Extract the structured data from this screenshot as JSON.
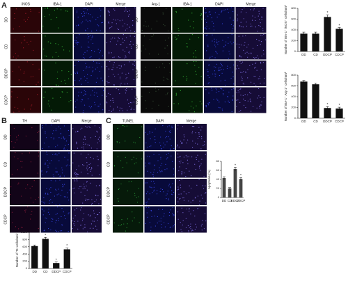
{
  "figure": {
    "panel_labels": [
      "A",
      "B",
      "C"
    ],
    "groups": [
      {
        "columns": [
          "iNOS",
          "IBA-1",
          "DAPI",
          "Merge"
        ],
        "rows": [
          "DD",
          "CD",
          "DDCP",
          "CDCP"
        ]
      },
      {
        "columns": [
          "Arg-1",
          "IBA-1",
          "DAPI",
          "Merge"
        ],
        "rows": [
          "DD",
          "CD",
          "DDCP",
          "CDCP"
        ]
      },
      {
        "columns": [
          "TH",
          "DAPI",
          "Merge"
        ],
        "rows": [
          "DD",
          "CD",
          "DDCP",
          "CDCP"
        ]
      },
      {
        "columns": [
          "TUNEL",
          "DAPI",
          "Merge"
        ],
        "rows": [
          "DD",
          "CD",
          "DDCP",
          "CDCP"
        ]
      }
    ]
  },
  "chart_data": [
    {
      "type": "bar",
      "y_label": "Number of IBA-1⁺ iNOS⁺ cells/mm²",
      "categories": [
        "DD",
        "CD",
        "DDCP",
        "CDCP"
      ],
      "values": [
        330,
        330,
        640,
        420
      ],
      "errors": [
        30,
        30,
        40,
        25
      ],
      "significance": [
        null,
        null,
        "*",
        "*"
      ],
      "color": "#111111",
      "ylim": [
        0,
        800
      ],
      "yticks": [
        0,
        200,
        400,
        600,
        800
      ]
    },
    {
      "type": "bar",
      "y_label": "Number of IBA-1⁺ Arg-1⁺ cells/mm²",
      "categories": [
        "DD",
        "CD",
        "DDCP",
        "CDCP"
      ],
      "values": [
        680,
        630,
        190,
        180
      ],
      "errors": [
        20,
        20,
        25,
        25
      ],
      "significance": [
        null,
        null,
        "*",
        "*"
      ],
      "color": "#111111",
      "ylim": [
        0,
        800
      ],
      "yticks": [
        0,
        200,
        400,
        600,
        800
      ]
    },
    {
      "type": "bar",
      "y_label": "Apoptosis (%)",
      "categories": [
        "DD",
        "CD",
        "DDCP",
        "CDCP"
      ],
      "values": [
        43,
        20,
        63,
        41
      ],
      "errors": [
        3,
        2,
        4,
        3
      ],
      "significance": [
        null,
        null,
        "*",
        "*"
      ],
      "color": "#444444",
      "ylim": [
        0,
        80
      ],
      "yticks": [
        0,
        20,
        40,
        60,
        80
      ]
    },
    {
      "type": "bar",
      "y_label": "Number of TH cells/mm²",
      "categories": [
        "DD",
        "CD",
        "DDCP",
        "CDCP"
      ],
      "values": [
        620,
        820,
        150,
        530
      ],
      "errors": [
        30,
        40,
        30,
        40
      ],
      "significance": [
        null,
        "*",
        "*",
        "*"
      ],
      "color": "#111111",
      "ylim": [
        0,
        1000
      ],
      "yticks": [
        0,
        200,
        400,
        600,
        800,
        1000
      ]
    }
  ]
}
